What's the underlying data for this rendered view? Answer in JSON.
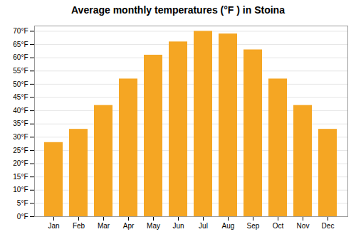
{
  "chart_data": {
    "type": "bar",
    "title": "Average monthly temperatures (°F ) in Stoina",
    "categories": [
      "Jan",
      "Feb",
      "Mar",
      "Apr",
      "May",
      "Jun",
      "Jul",
      "Aug",
      "Sep",
      "Oct",
      "Nov",
      "Dec"
    ],
    "values": [
      28,
      33,
      42,
      52,
      61,
      66,
      70,
      69,
      63,
      52,
      42,
      33
    ],
    "color": "#F5A623",
    "ylim": [
      0,
      72
    ],
    "yticks": [
      {
        "value": 0,
        "label": "0°F"
      },
      {
        "value": 5,
        "label": "5°F"
      },
      {
        "value": 10,
        "label": "10°F"
      },
      {
        "value": 15,
        "label": "15°F"
      },
      {
        "value": 20,
        "label": "20°F"
      },
      {
        "value": 25,
        "label": "25°F"
      },
      {
        "value": 30,
        "label": "30°F"
      },
      {
        "value": 35,
        "label": "35°F"
      },
      {
        "value": 40,
        "label": "40°F"
      },
      {
        "value": 45,
        "label": "45°F"
      },
      {
        "value": 50,
        "label": "50°F"
      },
      {
        "value": 55,
        "label": "55°F"
      },
      {
        "value": 60,
        "label": "60°F"
      },
      {
        "value": 65,
        "label": "65°F"
      },
      {
        "value": 70,
        "label": "70°F"
      }
    ],
    "grid": true
  }
}
